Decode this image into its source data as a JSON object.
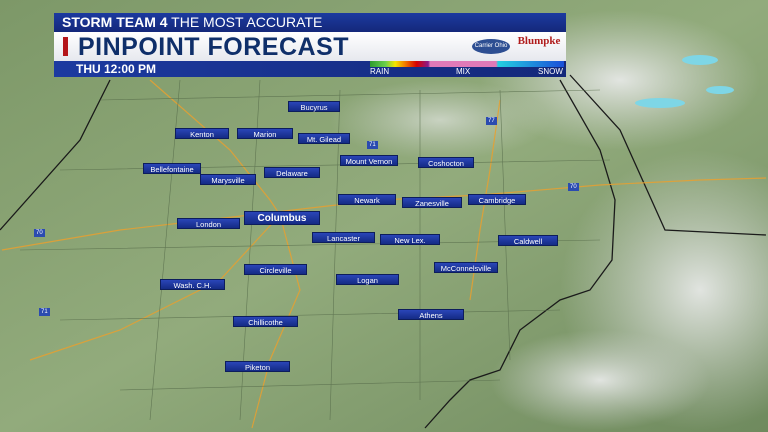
{
  "header": {
    "brand": "STORM TEAM 4",
    "tagline": "THE MOST ACCURATE",
    "title": "PINPOINT FORECAST",
    "time": "THU 12:00 PM",
    "sponsor_logos": [
      "Carrier Ohio",
      "Blumpke"
    ],
    "precip_legend": {
      "labels": [
        "RAIN",
        "MIX",
        "SNOW"
      ],
      "colors": {
        "rain": "#2e9b2e",
        "heavy": "#d80000",
        "mix": "#e07ab8",
        "snow": "#1a4ed8"
      }
    }
  },
  "cities": [
    {
      "name": "Bucyrus"
    },
    {
      "name": "Kenton"
    },
    {
      "name": "Marion"
    },
    {
      "name": "Mt. Gilead"
    },
    {
      "name": "Mount Vernon"
    },
    {
      "name": "Coshocton"
    },
    {
      "name": "Bellefontaine"
    },
    {
      "name": "Marysville"
    },
    {
      "name": "Delaware"
    },
    {
      "name": "Newark"
    },
    {
      "name": "Zanesville"
    },
    {
      "name": "Cambridge"
    },
    {
      "name": "Columbus"
    },
    {
      "name": "London"
    },
    {
      "name": "Lancaster"
    },
    {
      "name": "New Lex."
    },
    {
      "name": "Caldwell"
    },
    {
      "name": "Circleville"
    },
    {
      "name": "McConnelsville"
    },
    {
      "name": "Logan"
    },
    {
      "name": "Wash. C.H."
    },
    {
      "name": "Athens"
    },
    {
      "name": "Chillicothe"
    },
    {
      "name": "Piketon"
    }
  ],
  "highway_shields": [
    "71",
    "77",
    "70",
    "70",
    "71"
  ],
  "colors": {
    "land": "#8aa474",
    "cloud": "#c9cdc9",
    "label_bg": "#1f3aa8"
  }
}
